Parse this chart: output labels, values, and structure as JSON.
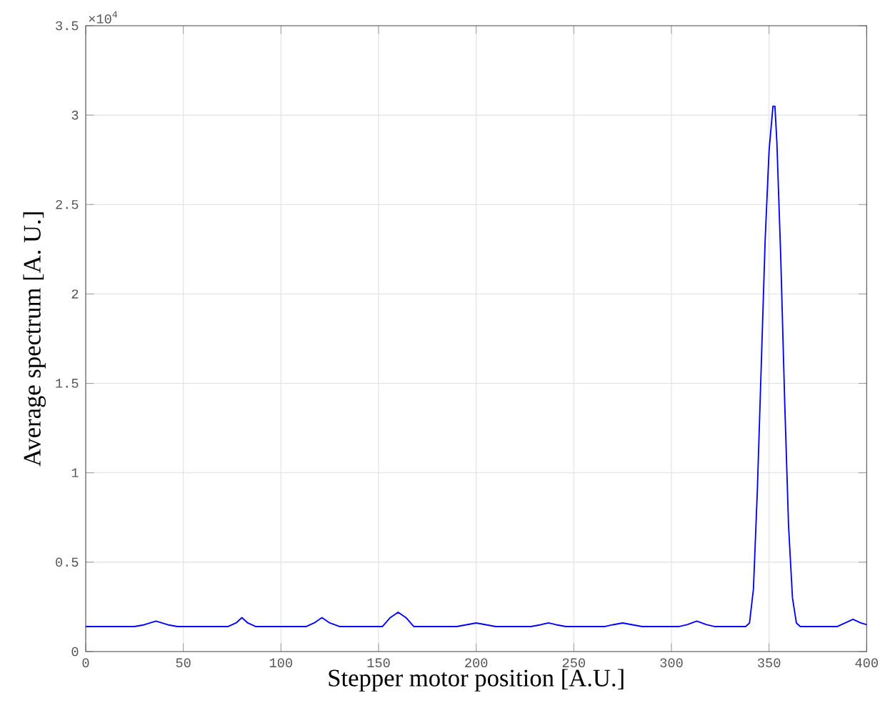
{
  "chart_data": {
    "type": "line",
    "xlabel": "Stepper motor position [A.U.]",
    "ylabel": "Average spectrum [A. U.]",
    "annotations": [
      "×10$^{4}$"
    ],
    "series": [
      {
        "color": "#0000ff",
        "x": [
          0,
          25,
          30,
          36,
          42,
          47,
          73,
          77,
          80,
          83,
          87,
          113,
          117,
          121,
          125,
          130,
          152,
          156,
          160,
          164,
          168,
          190,
          195,
          200,
          205,
          210,
          228,
          233,
          237,
          241,
          246,
          266,
          270,
          275,
          280,
          285,
          304,
          308,
          313,
          318,
          322,
          338,
          340,
          342,
          344,
          346,
          348,
          350,
          352,
          353,
          354,
          356,
          358,
          360,
          362,
          364,
          366,
          385,
          389,
          393,
          397,
          400
        ],
        "values": [
          0.14,
          0.14,
          0.15,
          0.17,
          0.15,
          0.14,
          0.14,
          0.16,
          0.19,
          0.16,
          0.14,
          0.14,
          0.16,
          0.19,
          0.16,
          0.14,
          0.14,
          0.19,
          0.22,
          0.19,
          0.14,
          0.14,
          0.15,
          0.16,
          0.15,
          0.14,
          0.14,
          0.15,
          0.16,
          0.15,
          0.14,
          0.14,
          0.15,
          0.16,
          0.15,
          0.14,
          0.14,
          0.15,
          0.17,
          0.15,
          0.14,
          0.14,
          0.16,
          0.35,
          0.9,
          1.6,
          2.3,
          2.8,
          3.05,
          3.05,
          2.85,
          2.2,
          1.4,
          0.7,
          0.3,
          0.16,
          0.14,
          0.14,
          0.16,
          0.18,
          0.16,
          0.15
        ]
      }
    ],
    "xlim": [
      0,
      400
    ],
    "xticks": [
      0,
      50,
      100,
      150,
      200,
      250,
      300,
      350,
      400
    ],
    "ylim": [
      0,
      3.5
    ],
    "yticks": [
      0,
      0.5,
      1,
      1.5,
      2,
      2.5,
      3,
      3.5
    ],
    "grid": true,
    "line_style": "solid",
    "marker": "none"
  }
}
